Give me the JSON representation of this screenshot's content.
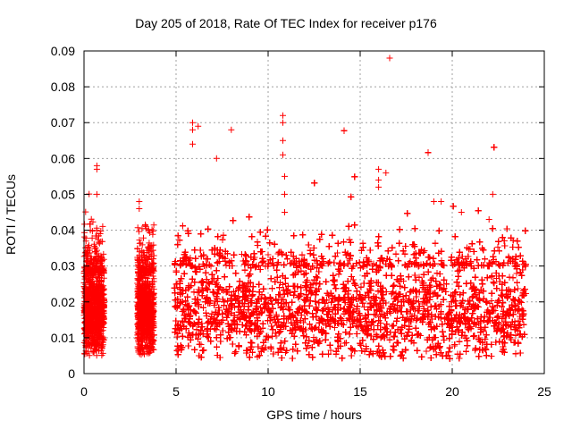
{
  "chart_data": {
    "type": "scatter",
    "title": "Day 205 of 2018, Rate Of TEC Index for receiver p176",
    "xlabel": "GPS time / hours",
    "ylabel": "ROTI / TECUs",
    "xlim": [
      0,
      25
    ],
    "ylim": [
      0,
      0.09
    ],
    "xticks": [
      "0",
      "5",
      "10",
      "15",
      "20",
      "25"
    ],
    "yticks": [
      "0",
      "0.01",
      "0.02",
      "0.03",
      "0.04",
      "0.05",
      "0.06",
      "0.07",
      "0.08",
      "0.09"
    ],
    "grid": true,
    "marker": "+",
    "color": "#ff0000",
    "segments": [
      {
        "x": [
          0.0,
          1.1
        ],
        "base": [
          0.006,
          0.028
        ],
        "peak": 0.058
      },
      {
        "x": [
          2.9,
          3.8
        ],
        "base": [
          0.006,
          0.028
        ],
        "peak": 0.048
      },
      {
        "x": [
          4.9,
          24.0
        ],
        "base": [
          0.005,
          0.03
        ],
        "peak": 0.07
      }
    ],
    "outliers": [
      {
        "x": 0.7,
        "y": 0.058
      },
      {
        "x": 0.7,
        "y": 0.057
      },
      {
        "x": 0.7,
        "y": 0.05
      },
      {
        "x": 3.0,
        "y": 0.048
      },
      {
        "x": 3.0,
        "y": 0.046
      },
      {
        "x": 5.9,
        "y": 0.07
      },
      {
        "x": 5.9,
        "y": 0.068
      },
      {
        "x": 5.9,
        "y": 0.064
      },
      {
        "x": 6.2,
        "y": 0.069
      },
      {
        "x": 7.2,
        "y": 0.06
      },
      {
        "x": 8.0,
        "y": 0.068
      },
      {
        "x": 10.8,
        "y": 0.072
      },
      {
        "x": 10.8,
        "y": 0.07
      },
      {
        "x": 10.8,
        "y": 0.065
      },
      {
        "x": 10.8,
        "y": 0.061
      },
      {
        "x": 10.9,
        "y": 0.055
      },
      {
        "x": 10.9,
        "y": 0.05
      },
      {
        "x": 10.9,
        "y": 0.045
      },
      {
        "x": 16.0,
        "y": 0.057
      },
      {
        "x": 16.0,
        "y": 0.054
      },
      {
        "x": 16.0,
        "y": 0.052
      },
      {
        "x": 16.4,
        "y": 0.056
      },
      {
        "x": 16.6,
        "y": 0.088
      },
      {
        "x": 19.0,
        "y": 0.048
      },
      {
        "x": 19.4,
        "y": 0.048
      },
      {
        "x": 22.2,
        "y": 0.05
      },
      {
        "x": 20.5,
        "y": 0.045
      },
      {
        "x": 22.0,
        "y": 0.043
      }
    ]
  }
}
